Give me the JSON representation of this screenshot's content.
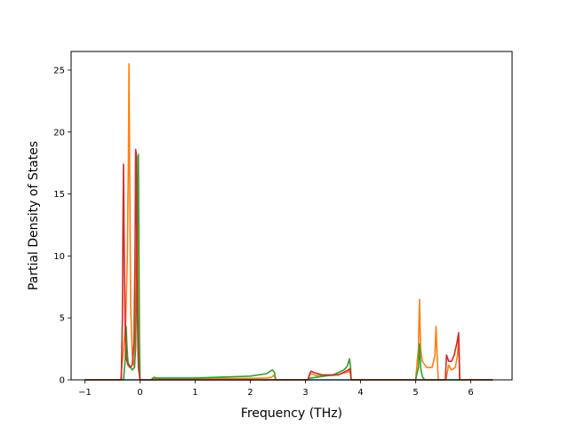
{
  "chart_data": {
    "type": "line",
    "title": "",
    "xlabel": "Frequency (THz)",
    "ylabel": "Partial Density of States",
    "xlim": [
      -1.25,
      6.75
    ],
    "ylim": [
      0,
      26.5
    ],
    "xticks": [
      -1,
      0,
      1,
      2,
      3,
      4,
      5,
      6
    ],
    "yticks": [
      0,
      5,
      10,
      15,
      20,
      25
    ],
    "grid": false,
    "legend": "none",
    "series": [
      {
        "color": "#1f77b4",
        "x": [
          -1.0,
          6.4
        ],
        "y": [
          0.0,
          0.0
        ]
      },
      {
        "color": "#ff7f0e",
        "x": [
          -1.0,
          -0.35,
          -0.3,
          -0.26,
          -0.23,
          -0.21,
          -0.2,
          -0.19,
          -0.17,
          -0.14,
          -0.1,
          -0.07,
          -0.05,
          -0.03,
          0.0,
          0.2,
          0.25,
          0.3,
          1.0,
          2.0,
          2.3,
          2.38,
          2.42,
          2.45,
          2.46,
          3.05,
          3.06,
          3.1,
          3.2,
          3.5,
          3.75,
          3.8,
          3.82,
          3.83,
          5.0,
          5.05,
          5.07,
          5.09,
          5.12,
          5.2,
          5.3,
          5.35,
          5.37,
          5.39,
          5.41,
          5.55,
          5.6,
          5.65,
          5.72,
          5.76,
          5.78,
          5.8,
          6.4
        ],
        "y": [
          0,
          0,
          2.5,
          4.5,
          10.0,
          18.0,
          25.5,
          18.0,
          6.0,
          2.0,
          1.0,
          8.0,
          15.0,
          3.0,
          0,
          0,
          0.15,
          0.1,
          0.1,
          0.12,
          0.15,
          0.2,
          0.35,
          0.2,
          0,
          0,
          0.3,
          0.5,
          0.35,
          0.35,
          0.6,
          0.7,
          0.5,
          0,
          0,
          2.5,
          6.5,
          2.5,
          1.5,
          1.0,
          1.0,
          2.0,
          4.3,
          2.0,
          0,
          0,
          1.2,
          0.8,
          1.0,
          2.0,
          3.3,
          0,
          0
        ]
      },
      {
        "color": "#2ca02c",
        "x": [
          -1.0,
          -0.3,
          -0.27,
          -0.25,
          -0.24,
          -0.22,
          -0.2,
          -0.17,
          -0.14,
          -0.1,
          -0.08,
          -0.06,
          -0.04,
          -0.03,
          -0.01,
          0.0,
          0.2,
          0.25,
          0.3,
          1.0,
          2.0,
          2.3,
          2.38,
          2.4,
          2.44,
          2.46,
          3.05,
          3.06,
          3.1,
          3.5,
          3.7,
          3.76,
          3.8,
          3.82,
          3.83,
          5.0,
          5.05,
          5.07,
          5.09,
          5.12,
          5.15,
          5.2,
          6.4
        ],
        "y": [
          0,
          0,
          1.5,
          4.3,
          3.0,
          1.5,
          1.2,
          1.0,
          0.8,
          1.0,
          2.5,
          8.0,
          18.0,
          18.2,
          3.0,
          0,
          0,
          0.2,
          0.15,
          0.15,
          0.3,
          0.5,
          0.75,
          0.8,
          0.6,
          0,
          0,
          0.1,
          0.15,
          0.4,
          0.8,
          1.1,
          1.7,
          1.0,
          0,
          0,
          1.0,
          2.9,
          1.0,
          0.3,
          0.05,
          0,
          0
        ]
      },
      {
        "color": "#d62728",
        "x": [
          -1.0,
          -0.34,
          -0.32,
          -0.31,
          -0.3,
          -0.29,
          -0.27,
          -0.25,
          -0.22,
          -0.18,
          -0.14,
          -0.11,
          -0.09,
          -0.08,
          -0.07,
          -0.05,
          -0.03,
          0.0,
          2.46,
          3.05,
          3.08,
          3.1,
          3.15,
          3.3,
          3.6,
          3.78,
          3.81,
          3.83,
          5.54,
          5.56,
          5.6,
          5.65,
          5.7,
          5.75,
          5.78,
          5.79,
          5.8,
          6.4
        ],
        "y": [
          0,
          0,
          5.0,
          12.0,
          17.4,
          12.0,
          4.0,
          1.8,
          1.2,
          1.0,
          1.2,
          3.0,
          10.0,
          18.6,
          18.3,
          6.0,
          1.0,
          0,
          0,
          0,
          0.5,
          0.7,
          0.6,
          0.4,
          0.4,
          0.8,
          0.9,
          0,
          0,
          2.0,
          1.5,
          1.5,
          2.0,
          3.0,
          3.8,
          2.0,
          0,
          0
        ]
      }
    ]
  }
}
